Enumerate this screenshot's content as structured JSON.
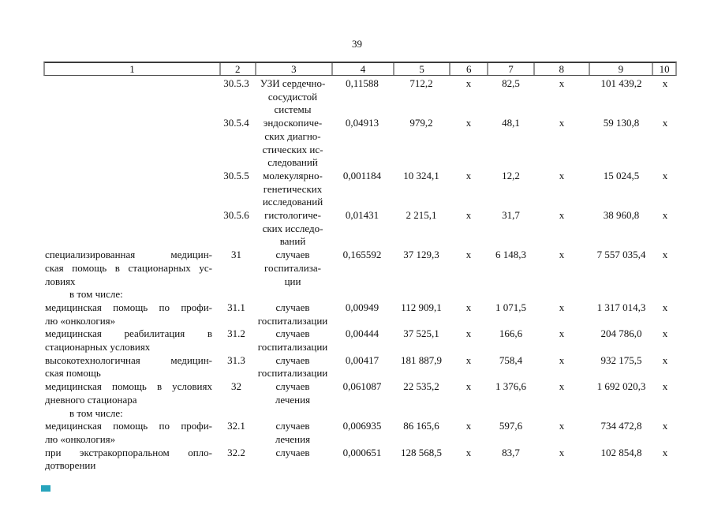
{
  "page_number": "39",
  "colors": {
    "accent_mark": "#27a4bc",
    "border_dark": "#3b3b3b",
    "border_gray": "#969696"
  },
  "table": {
    "columns": [
      "1",
      "2",
      "3",
      "4",
      "5",
      "6",
      "7",
      "8",
      "9",
      "10"
    ],
    "rows": [
      {
        "num": "30.5.3",
        "name_lines": [],
        "sub": "",
        "unit_lines": [
          "УЗИ сердечно-",
          "сосудистой",
          "системы"
        ],
        "values": {
          "c4": "0,11588",
          "c5": "712,2",
          "c6": "x",
          "c7": "82,5",
          "c8": "x",
          "c9": "101 439,2",
          "c10": "x"
        }
      },
      {
        "num": "30.5.4",
        "name_lines": [],
        "sub": "",
        "unit_lines": [
          "эндоскопиче-",
          "ских диагно-",
          "стических ис-",
          "следований"
        ],
        "values": {
          "c4": "0,04913",
          "c5": "979,2",
          "c6": "x",
          "c7": "48,1",
          "c8": "x",
          "c9": "59 130,8",
          "c10": "x"
        }
      },
      {
        "num": "30.5.5",
        "name_lines": [],
        "sub": "",
        "unit_lines": [
          "молекулярно-",
          "генетических",
          "исследований"
        ],
        "values": {
          "c4": "0,001184",
          "c5": "10 324,1",
          "c6": "x",
          "c7": "12,2",
          "c8": "x",
          "c9": "15 024,5",
          "c10": "x"
        }
      },
      {
        "num": "30.5.6",
        "name_lines": [],
        "sub": "",
        "unit_lines": [
          "гистологиче-",
          "ских исследо-",
          "ваний"
        ],
        "values": {
          "c4": "0,01431",
          "c5": "2 215,1",
          "c6": "x",
          "c7": "31,7",
          "c8": "x",
          "c9": "38 960,8",
          "c10": "x"
        }
      },
      {
        "num": "31",
        "name_lines": [
          "специализированная медицин-",
          "ская помощь в стационарных ус-",
          "ловиях"
        ],
        "sub": "в том числе:",
        "unit_lines": [
          "случаев",
          "госпитализа-",
          "ции"
        ],
        "values": {
          "c4": "0,165592",
          "c5": "37 129,3",
          "c6": "x",
          "c7": "6 148,3",
          "c8": "x",
          "c9": "7 557 035,4",
          "c10": "x"
        }
      },
      {
        "num": "31.1",
        "name_lines": [
          "медицинская помощь по профи-",
          "лю «онкология»"
        ],
        "sub": "",
        "unit_lines": [
          "случаев",
          "госпитализации"
        ],
        "values": {
          "c4": "0,00949",
          "c5": "112 909,1",
          "c6": "x",
          "c7": "1 071,5",
          "c8": "x",
          "c9": "1 317 014,3",
          "c10": "x"
        }
      },
      {
        "num": "31.2",
        "name_lines": [
          "медицинская реабилитация в",
          "стационарных условиях"
        ],
        "sub": "",
        "unit_lines": [
          "случаев",
          "госпитализации"
        ],
        "values": {
          "c4": "0,00444",
          "c5": "37 525,1",
          "c6": "x",
          "c7": "166,6",
          "c8": "x",
          "c9": "204 786,0",
          "c10": "x"
        }
      },
      {
        "num": "31.3",
        "name_lines": [
          "высокотехнологичная медицин-",
          "ская помощь"
        ],
        "sub": "",
        "unit_lines": [
          "случаев",
          "госпитализации"
        ],
        "values": {
          "c4": "0,00417",
          "c5": "181 887,9",
          "c6": "x",
          "c7": "758,4",
          "c8": "x",
          "c9": "932 175,5",
          "c10": "x"
        }
      },
      {
        "num": "32",
        "name_lines": [
          "медицинская помощь в условиях",
          "дневного стационара"
        ],
        "sub": "в том числе:",
        "unit_lines": [
          "случаев",
          "лечения"
        ],
        "values": {
          "c4": "0,061087",
          "c5": "22 535,2",
          "c6": "x",
          "c7": "1 376,6",
          "c8": "x",
          "c9": "1 692 020,3",
          "c10": "x"
        }
      },
      {
        "num": "32.1",
        "name_lines": [
          "медицинская помощь по профи-",
          "лю «онкология»"
        ],
        "sub": "",
        "unit_lines": [
          "случаев",
          "лечения"
        ],
        "values": {
          "c4": "0,006935",
          "c5": "86 165,6",
          "c6": "x",
          "c7": "597,6",
          "c8": "x",
          "c9": "734 472,8",
          "c10": "x"
        }
      },
      {
        "num": "32.2",
        "name_lines": [
          "при экстракорпоральном опло-",
          "дотворении"
        ],
        "sub": "",
        "unit_lines": [
          "случаев"
        ],
        "values": {
          "c4": "0,000651",
          "c5": "128 568,5",
          "c6": "x",
          "c7": "83,7",
          "c8": "x",
          "c9": "102 854,8",
          "c10": "x"
        }
      }
    ]
  }
}
